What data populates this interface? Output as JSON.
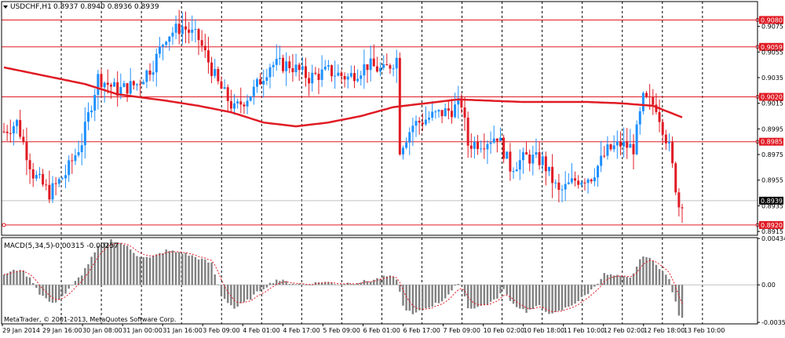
{
  "symbol_header": {
    "symbol": "USDCHF,H1",
    "ohlc": "0.8937 0.8940 0.8936 0.8939"
  },
  "macd_header": {
    "label": "MACD(5,34,5)",
    "values": "-0.00315 -0.00257"
  },
  "copyright": "MetaTrader, © 2001-2013, MetaQuotes Software Corp.",
  "colors": {
    "background": "#ffffff",
    "axis": "#000000",
    "grid": "#000000",
    "bull": "#1e90ff",
    "bear": "#e01b24",
    "moving_average": "#e01b24",
    "level_line": "#e01b24",
    "price_box": "#e01b24",
    "current_price_box": "#000000",
    "macd_hist": "#808080",
    "macd_signal": "#e01b24"
  },
  "chart_data": [
    {
      "type": "candlestick",
      "name": "USDCHF,H1",
      "ylim": [
        0.8912,
        0.9087
      ],
      "y_ticks": [
        "0.9075",
        "0.9055",
        "0.9035",
        "0.9015",
        "0.8995",
        "0.8975",
        "0.8955",
        "0.8935",
        "0.8915"
      ],
      "x_ticks": [
        "29 Jan 2014",
        "29 Jan 16:00",
        "30 Jan 08:00",
        "31 Jan 00:00",
        "31 Jan 16:00",
        "3 Feb 09:00",
        "4 Feb 01:00",
        "4 Feb 17:00",
        "5 Feb 09:00",
        "6 Feb 01:00",
        "6 Feb 17:00",
        "7 Feb 09:00",
        "10 Feb 02:00",
        "10 Feb 18:00",
        "11 Feb 10:00",
        "12 Feb 02:00",
        "12 Feb 18:00",
        "13 Feb 10:00"
      ],
      "grid": "vertical-dashed",
      "candle_count": 210,
      "close_anchors": [
        [
          0,
          0.8993
        ],
        [
          4,
          0.9
        ],
        [
          9,
          0.896
        ],
        [
          14,
          0.8945
        ],
        [
          19,
          0.896
        ],
        [
          24,
          0.8985
        ],
        [
          29,
          0.9035
        ],
        [
          35,
          0.9025
        ],
        [
          41,
          0.903
        ],
        [
          46,
          0.9045
        ],
        [
          50,
          0.9068
        ],
        [
          55,
          0.9075
        ],
        [
          60,
          0.9065
        ],
        [
          66,
          0.903
        ],
        [
          71,
          0.901
        ],
        [
          77,
          0.9025
        ],
        [
          82,
          0.9045
        ],
        [
          88,
          0.9045
        ],
        [
          94,
          0.9035
        ],
        [
          100,
          0.904
        ],
        [
          106,
          0.9035
        ],
        [
          112,
          0.9045
        ],
        [
          117,
          0.904
        ],
        [
          121,
          0.905
        ],
        [
          122,
          0.898
        ],
        [
          126,
          0.8998
        ],
        [
          132,
          0.9005
        ],
        [
          138,
          0.901
        ],
        [
          141,
          0.9015
        ],
        [
          143,
          0.8983
        ],
        [
          148,
          0.8985
        ],
        [
          152,
          0.899
        ],
        [
          156,
          0.8965
        ],
        [
          161,
          0.8973
        ],
        [
          166,
          0.897
        ],
        [
          171,
          0.8945
        ],
        [
          176,
          0.8955
        ],
        [
          181,
          0.8958
        ],
        [
          186,
          0.8978
        ],
        [
          190,
          0.8983
        ],
        [
          194,
          0.898
        ],
        [
          197,
          0.9018
        ],
        [
          201,
          0.9013
        ],
        [
          205,
          0.898
        ],
        [
          208,
          0.8935
        ],
        [
          209,
          0.8939
        ]
      ],
      "moving_average": [
        [
          0,
          0.9043
        ],
        [
          25,
          0.903
        ],
        [
          35,
          0.9022
        ],
        [
          50,
          0.9017
        ],
        [
          60,
          0.9013
        ],
        [
          70,
          0.9008
        ],
        [
          80,
          0.9
        ],
        [
          90,
          0.8997
        ],
        [
          100,
          0.9
        ],
        [
          110,
          0.9005
        ],
        [
          120,
          0.9012
        ],
        [
          130,
          0.9015
        ],
        [
          140,
          0.9018
        ],
        [
          150,
          0.9017
        ],
        [
          160,
          0.9016
        ],
        [
          170,
          0.9016
        ],
        [
          180,
          0.9016
        ],
        [
          190,
          0.9015
        ],
        [
          200,
          0.9013
        ],
        [
          210,
          0.9003
        ]
      ],
      "horizontal_levels": [
        {
          "value": 0.908,
          "label": "0.9080"
        },
        {
          "value": 0.9059,
          "label": "0.9059"
        },
        {
          "value": 0.902,
          "label": "0.9020"
        },
        {
          "value": 0.8985,
          "label": "0.8985"
        },
        {
          "value": 0.892,
          "label": "0.8920"
        }
      ],
      "current_price": {
        "value": 0.8939,
        "label": "0.8939"
      }
    },
    {
      "type": "bar",
      "name": "MACD(5,34,5)",
      "ylim": [
        -0.00365,
        0.00442
      ],
      "y_ticks": [
        "0.00434",
        "0.00",
        "-0.00351"
      ],
      "series": [
        {
          "name": "MACD",
          "anchors": [
            [
              0,
              0.001
            ],
            [
              5,
              0.0015
            ],
            [
              9,
              0.0003
            ],
            [
              11,
              -0.0008
            ],
            [
              15,
              -0.0018
            ],
            [
              19,
              -0.0008
            ],
            [
              24,
              0.001
            ],
            [
              29,
              0.0035
            ],
            [
              33,
              0.0042
            ],
            [
              37,
              0.0038
            ],
            [
              41,
              0.0028
            ],
            [
              45,
              0.0025
            ],
            [
              50,
              0.0032
            ],
            [
              55,
              0.003
            ],
            [
              60,
              0.0025
            ],
            [
              64,
              0.002
            ],
            [
              67,
              -0.001
            ],
            [
              71,
              -0.0022
            ],
            [
              75,
              -0.0015
            ],
            [
              79,
              -0.0005
            ],
            [
              84,
              0.0005
            ],
            [
              88,
              0.0002
            ],
            [
              93,
              0.0
            ],
            [
              98,
              0.0003
            ],
            [
              103,
              0.0001
            ],
            [
              108,
              0.0002
            ],
            [
              113,
              0.0004
            ],
            [
              118,
              0.0008
            ],
            [
              121,
              0.0006
            ],
            [
              123,
              -0.002
            ],
            [
              126,
              -0.0028
            ],
            [
              130,
              -0.0022
            ],
            [
              135,
              -0.0015
            ],
            [
              139,
              -0.0002
            ],
            [
              141,
              0.0001
            ],
            [
              143,
              -0.0022
            ],
            [
              147,
              -0.002
            ],
            [
              151,
              -0.0015
            ],
            [
              154,
              -0.0005
            ],
            [
              157,
              -0.0018
            ],
            [
              161,
              -0.0025
            ],
            [
              165,
              -0.002
            ],
            [
              169,
              -0.0028
            ],
            [
              173,
              -0.0022
            ],
            [
              177,
              -0.0015
            ],
            [
              181,
              -0.0005
            ],
            [
              185,
              0.001
            ],
            [
              189,
              0.0008
            ],
            [
              193,
              0.0006
            ],
            [
              197,
              0.0028
            ],
            [
              201,
              0.002
            ],
            [
              205,
              0.0005
            ],
            [
              208,
              -0.0028
            ],
            [
              209,
              -0.0032
            ]
          ]
        },
        {
          "name": "Signal",
          "type": "line",
          "smoothing_period": 5
        }
      ]
    }
  ]
}
